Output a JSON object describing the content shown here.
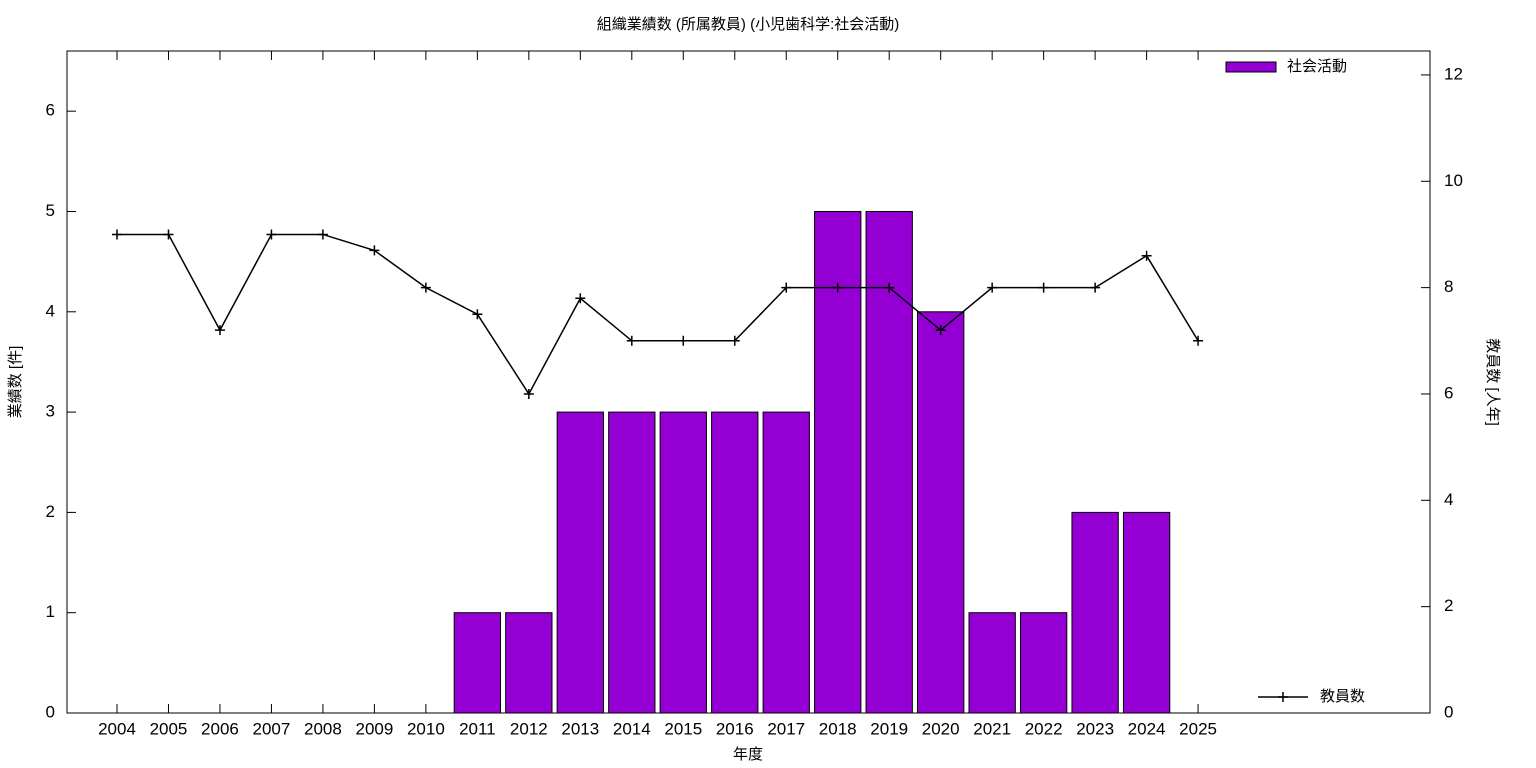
{
  "chart_data": {
    "type": "bar",
    "title": "組織業績数 (所属教員) (小児歯科学:社会活動)",
    "x_label": "年度",
    "y_label": "業績数 [件]",
    "y2_label": "教員数 [人年]",
    "categories": [
      "2004",
      "2005",
      "2006",
      "2007",
      "2008",
      "2009",
      "2010",
      "2011",
      "2012",
      "2013",
      "2014",
      "2015",
      "2016",
      "2017",
      "2018",
      "2019",
      "2020",
      "2021",
      "2022",
      "2023",
      "2024",
      "2025"
    ],
    "series": [
      {
        "name": "社会活動",
        "type": "bar",
        "color": "#9400d3",
        "legend": "top-right",
        "values": [
          0,
          0,
          0,
          0,
          0,
          0,
          0,
          1,
          1,
          3,
          3,
          3,
          3,
          3,
          5,
          5,
          4,
          1,
          1,
          2,
          2,
          0
        ]
      },
      {
        "name": "教員数",
        "type": "line",
        "axis": "y2",
        "color": "#000000",
        "legend": "bottom-right",
        "values": [
          9,
          9,
          7.2,
          9,
          9,
          8.7,
          8,
          7.5,
          6,
          7.8,
          7,
          7,
          7,
          8,
          8,
          8,
          7.2,
          8,
          8,
          8,
          8.6,
          7
        ]
      }
    ],
    "ylim": [
      0,
      6.6
    ],
    "yticks": [
      0,
      1,
      2,
      3,
      4,
      5,
      6
    ],
    "y2lim": [
      0,
      12.45
    ],
    "y2ticks": [
      0,
      2,
      4,
      6,
      8,
      10,
      12
    ]
  }
}
